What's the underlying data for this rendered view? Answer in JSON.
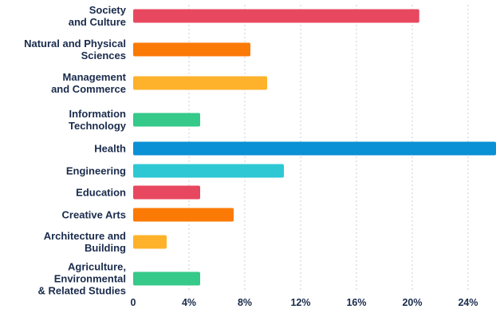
{
  "chart_data": {
    "type": "bar",
    "orientation": "horizontal",
    "title": "",
    "xlabel": "",
    "ylabel": "",
    "categories": [
      [
        "Society",
        "and Culture"
      ],
      [
        "Natural and Physical",
        "Sciences"
      ],
      [
        "Management",
        "and Commerce"
      ],
      [
        "Information",
        "Technology"
      ],
      [
        "Health"
      ],
      [
        "Engineering"
      ],
      [
        "Education"
      ],
      [
        "Creative Arts"
      ],
      [
        "Architecture and",
        "Building"
      ],
      [
        "Agriculture,",
        "Environmental",
        "& Related Studies"
      ]
    ],
    "values": [
      20.5,
      8.4,
      9.6,
      4.8,
      26.0,
      10.8,
      4.8,
      7.2,
      2.4,
      4.8
    ],
    "colors": [
      "#e8485f",
      "#fb7a06",
      "#feb22b",
      "#35c98a",
      "#0a90d4",
      "#2ec8d4",
      "#e8485f",
      "#fb7a06",
      "#feb22b",
      "#35c98a"
    ],
    "xticks": [
      0,
      4,
      8,
      12,
      16,
      20,
      24
    ],
    "xtick_labels": [
      "0",
      "4%",
      "8%",
      "12%",
      "16%",
      "20%",
      "24%"
    ],
    "xlim": [
      0,
      26
    ],
    "grid": true
  }
}
